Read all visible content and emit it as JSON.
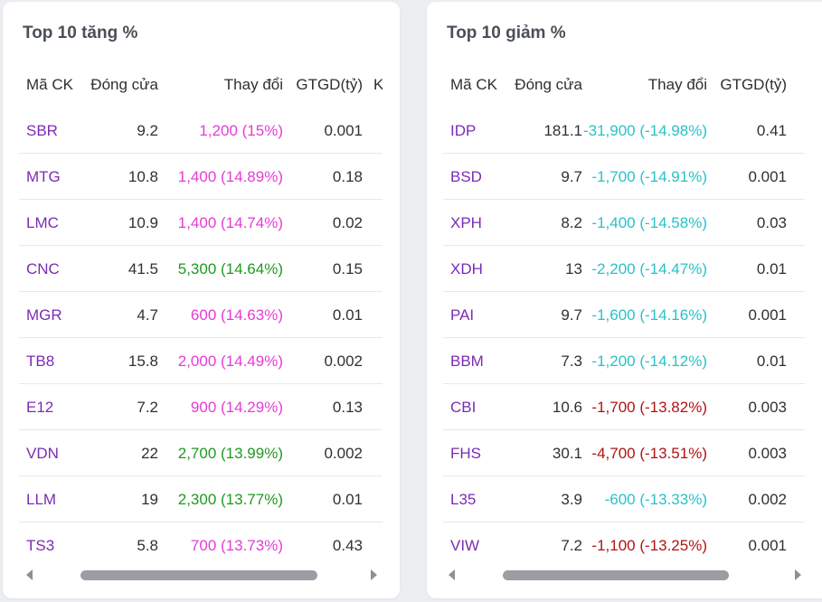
{
  "gainers": {
    "title": "Top 10 tăng %",
    "headers": {
      "code": "Mã CK",
      "close": "Đóng cửa",
      "change": "Thay đổi",
      "value": "GTGD(tỷ)",
      "extra": "K"
    },
    "rows": [
      {
        "code": "SBR",
        "close": "9.2",
        "change": "1,200 (15%)",
        "value": "0.001",
        "tone": "up"
      },
      {
        "code": "MTG",
        "close": "10.8",
        "change": "1,400 (14.89%)",
        "value": "0.18",
        "tone": "up"
      },
      {
        "code": "LMC",
        "close": "10.9",
        "change": "1,400 (14.74%)",
        "value": "0.02",
        "tone": "up"
      },
      {
        "code": "CNC",
        "close": "41.5",
        "change": "5,300 (14.64%)",
        "value": "0.15",
        "tone": "up-green"
      },
      {
        "code": "MGR",
        "close": "4.7",
        "change": "600 (14.63%)",
        "value": "0.01",
        "tone": "up"
      },
      {
        "code": "TB8",
        "close": "15.8",
        "change": "2,000 (14.49%)",
        "value": "0.002",
        "tone": "up"
      },
      {
        "code": "E12",
        "close": "7.2",
        "change": "900 (14.29%)",
        "value": "0.13",
        "tone": "up"
      },
      {
        "code": "VDN",
        "close": "22",
        "change": "2,700 (13.99%)",
        "value": "0.002",
        "tone": "up-green"
      },
      {
        "code": "LLM",
        "close": "19",
        "change": "2,300 (13.77%)",
        "value": "0.01",
        "tone": "up-green"
      },
      {
        "code": "TS3",
        "close": "5.8",
        "change": "700 (13.73%)",
        "value": "0.43",
        "tone": "up"
      }
    ]
  },
  "losers": {
    "title": "Top 10 giảm %",
    "headers": {
      "code": "Mã CK",
      "close": "Đóng cửa",
      "change": "Thay đổi",
      "value": "GTGD(tỷ)"
    },
    "rows": [
      {
        "code": "IDP",
        "close": "181.1",
        "change": "-31,900 (-14.98%)",
        "value": "0.41",
        "tone": "down"
      },
      {
        "code": "BSD",
        "close": "9.7",
        "change": "-1,700 (-14.91%)",
        "value": "0.001",
        "tone": "down"
      },
      {
        "code": "XPH",
        "close": "8.2",
        "change": "-1,400 (-14.58%)",
        "value": "0.03",
        "tone": "down"
      },
      {
        "code": "XDH",
        "close": "13",
        "change": "-2,200 (-14.47%)",
        "value": "0.01",
        "tone": "down"
      },
      {
        "code": "PAI",
        "close": "9.7",
        "change": "-1,600 (-14.16%)",
        "value": "0.001",
        "tone": "down"
      },
      {
        "code": "BBM",
        "close": "7.3",
        "change": "-1,200 (-14.12%)",
        "value": "0.01",
        "tone": "down"
      },
      {
        "code": "CBI",
        "close": "10.6",
        "change": "-1,700 (-13.82%)",
        "value": "0.003",
        "tone": "down-red"
      },
      {
        "code": "FHS",
        "close": "30.1",
        "change": "-4,700 (-13.51%)",
        "value": "0.003",
        "tone": "down-red"
      },
      {
        "code": "L35",
        "close": "3.9",
        "change": "-600 (-13.33%)",
        "value": "0.002",
        "tone": "down"
      },
      {
        "code": "VIW",
        "close": "7.2",
        "change": "-1,100 (-13.25%)",
        "value": "0.001",
        "tone": "down-red"
      }
    ]
  },
  "colors": {
    "symbol": "#7b2bb5",
    "ceiling_pink": "#e63bd6",
    "up_green": "#1f9a1f",
    "floor_cyan": "#29c2c6",
    "down_red": "#b31212"
  },
  "icons": {
    "scroll_left": "triangle-left-icon",
    "scroll_right": "triangle-right-icon"
  }
}
